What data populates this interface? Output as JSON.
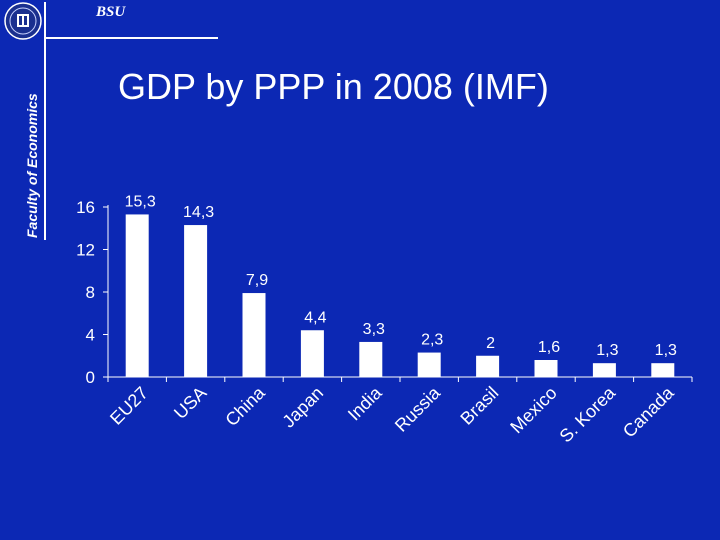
{
  "header": {
    "brand": "BSU",
    "faculty": "Faculty of Economics"
  },
  "slide": {
    "title": "GDP by PPP in 2008 (IMF)"
  },
  "colors": {
    "background": "#0c28b4",
    "bars": "#ffffff",
    "text": "#ffffff"
  },
  "chart_data": {
    "type": "bar",
    "title": "GDP by PPP in 2008 (IMF)",
    "xlabel": "",
    "ylabel": "",
    "ylim": [
      0,
      16
    ],
    "yticks": [
      0,
      4,
      8,
      12,
      16
    ],
    "grid": false,
    "categories": [
      "EU27",
      "USA",
      "China",
      "Japan",
      "India",
      "Russia",
      "Brasil",
      "Mexico",
      "S. Korea",
      "Canada"
    ],
    "values": [
      15.3,
      14.3,
      7.9,
      4.4,
      3.3,
      2.3,
      2,
      1.6,
      1.3,
      1.3
    ],
    "value_labels": [
      "15,3",
      "14,3",
      "7,9",
      "4,4",
      "3,3",
      "2,3",
      "2",
      "1,6",
      "1,3",
      "1,3"
    ]
  }
}
